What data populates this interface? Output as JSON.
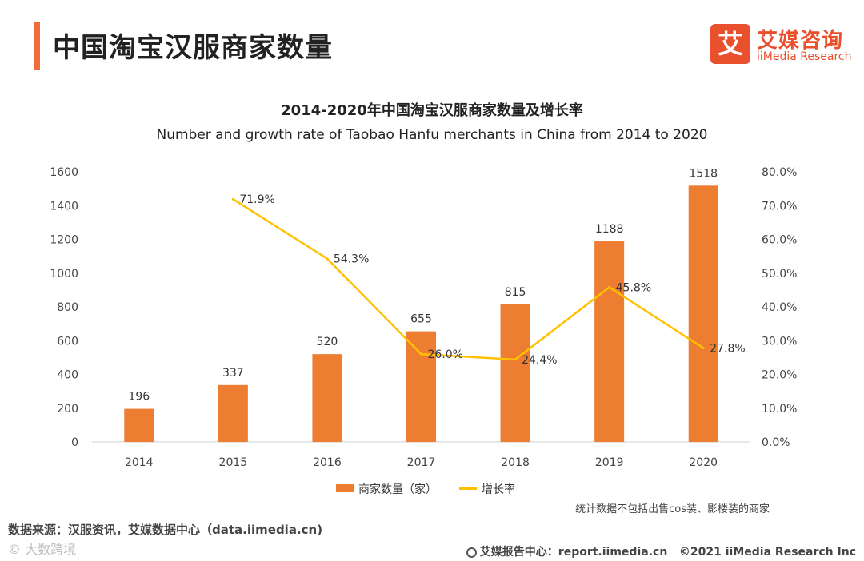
{
  "header": {
    "title": "中国淘宝汉服商家数量",
    "accent_color": "#F26B3A"
  },
  "logo": {
    "mark": "艾",
    "name_cn": "艾媒咨询",
    "name_en": "iiMedia Research",
    "color": "#E8502E"
  },
  "chart_data": {
    "type": "bar",
    "title": "2014-2020年中国淘宝汉服商家数量及增长率",
    "subtitle": "Number and growth rate of Taobao Hanfu merchants in China from 2014 to 2020",
    "categories": [
      "2014",
      "2015",
      "2016",
      "2017",
      "2018",
      "2019",
      "2020"
    ],
    "series": [
      {
        "name": "商家数量（家）",
        "type": "bar",
        "axis": "left",
        "color": "#ED7D31",
        "values": [
          196,
          337,
          520,
          655,
          815,
          1188,
          1518
        ],
        "labels": [
          "196",
          "337",
          "520",
          "655",
          "815",
          "1188",
          "1518"
        ]
      },
      {
        "name": "增长率",
        "type": "line",
        "axis": "right",
        "color": "#FFC000",
        "values": [
          null,
          71.9,
          54.3,
          26.0,
          24.4,
          45.8,
          27.8
        ],
        "labels": [
          "",
          "71.9%",
          "54.3%",
          "26.0%",
          "24.4%",
          "45.8%",
          "27.8%"
        ]
      }
    ],
    "ylim_left": [
      0,
      1600
    ],
    "yticks_left": [
      "0",
      "200",
      "400",
      "600",
      "800",
      "1000",
      "1200",
      "1400",
      "1600"
    ],
    "ylim_right": [
      0,
      80
    ],
    "yticks_right": [
      "0.0%",
      "10.0%",
      "20.0%",
      "30.0%",
      "40.0%",
      "50.0%",
      "60.0%",
      "70.0%",
      "80.0%"
    ],
    "grid": false,
    "legend": "bottom"
  },
  "note": "统计数据不包括出售cos装、影楼装的商家",
  "source": "数据来源：汉服资讯，艾媒数据中心（data.iimedia.cn)",
  "watermark": "© 大数跨境",
  "footer": {
    "report": "艾媒报告中心：report.iimedia.cn",
    "copyright": "©2021  iiMedia Research  Inc"
  }
}
